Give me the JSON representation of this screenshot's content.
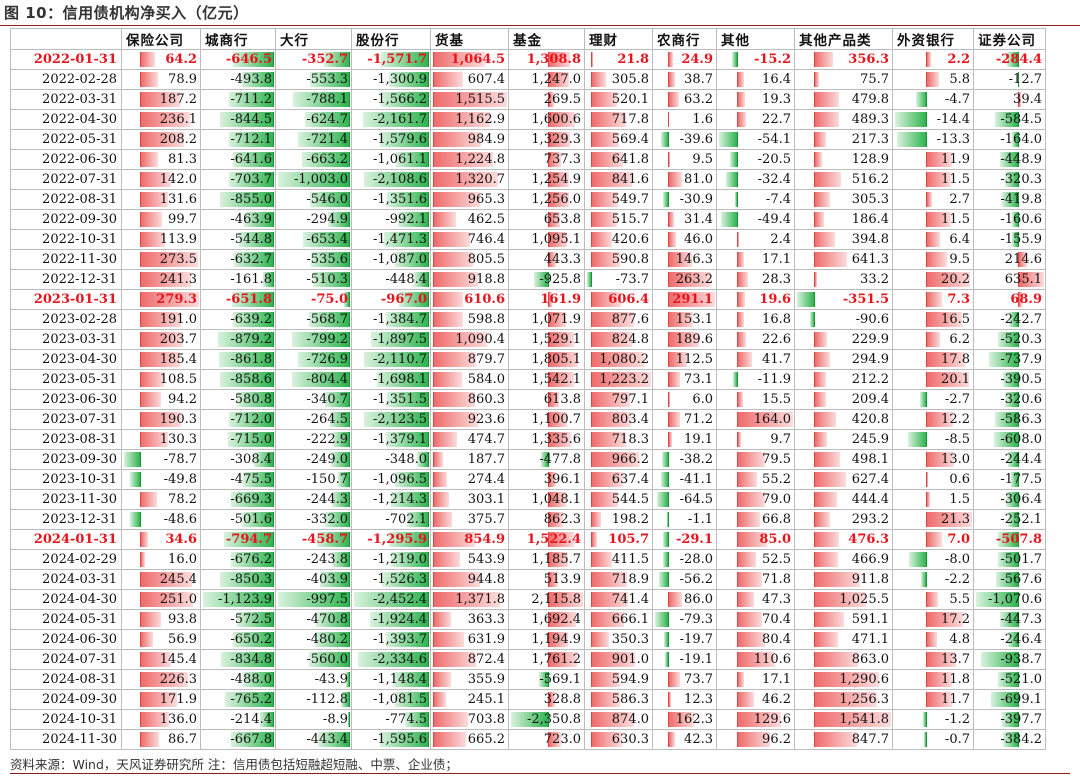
{
  "title": "图 10：信用债机构净买入（亿元）",
  "source_note": "资料来源：Wind，天风证券研究所   注：信用债包括短融超短融、中票、企业债；",
  "colors": {
    "positive_bar": "#ef6b6b",
    "negative_bar": "#2eb44e",
    "highlight_text": "#e8141b",
    "title_rule": "#8a1f1f"
  },
  "highlight_dates": [
    "2022-01-31",
    "2023-01-31",
    "2024-01-31"
  ],
  "table": {
    "date_header": "",
    "headers": [
      "保险公司",
      "城商行",
      "大行",
      "股份行",
      "货基",
      "基金",
      "理财",
      "农商行",
      "其他",
      "其他产品类",
      "外资银行",
      "证券公司"
    ],
    "rows": [
      [
        "2022-01-31",
        "64.2",
        "-646.5",
        "-352.7",
        "-1,571.7",
        "1,064.5",
        "1,308.8",
        "21.8",
        "24.9",
        "-15.2",
        "356.3",
        "2.2",
        "-284.4"
      ],
      [
        "2022-02-28",
        "78.9",
        "-493.8",
        "-553.3",
        "-1,300.9",
        "607.4",
        "1,247.0",
        "305.8",
        "38.7",
        "16.4",
        "75.7",
        "5.8",
        "-12.7"
      ],
      [
        "2022-03-31",
        "187.2",
        "-711.2",
        "-788.1",
        "-1,566.2",
        "1,515.5",
        "269.5",
        "520.1",
        "63.2",
        "19.3",
        "479.8",
        "-4.7",
        "39.4"
      ],
      [
        "2022-04-30",
        "236.1",
        "-844.5",
        "-624.7",
        "-2,161.7",
        "1,162.9",
        "1,600.6",
        "717.8",
        "1.6",
        "22.7",
        "489.3",
        "-14.4",
        "-584.5"
      ],
      [
        "2022-05-31",
        "208.2",
        "-712.1",
        "-721.4",
        "-1,579.6",
        "984.9",
        "1,329.3",
        "569.4",
        "-39.6",
        "-54.1",
        "217.3",
        "-13.3",
        "-164.0"
      ],
      [
        "2022-06-30",
        "81.3",
        "-641.6",
        "-663.2",
        "-1,061.1",
        "1,224.8",
        "737.3",
        "641.8",
        "9.5",
        "-20.5",
        "128.9",
        "11.9",
        "-448.9"
      ],
      [
        "2022-07-31",
        "142.0",
        "-703.7",
        "-1,003.0",
        "-2,108.6",
        "1,320.7",
        "1,254.9",
        "841.6",
        "81.0",
        "-32.4",
        "516.2",
        "11.5",
        "-320.3"
      ],
      [
        "2022-08-31",
        "131.6",
        "-855.0",
        "-546.0",
        "-1,351.6",
        "965.3",
        "1,256.0",
        "549.7",
        "-30.9",
        "-7.4",
        "305.3",
        "2.7",
        "-419.8"
      ],
      [
        "2022-09-30",
        "99.7",
        "-463.9",
        "-294.9",
        "-992.1",
        "462.5",
        "653.8",
        "515.7",
        "31.4",
        "-49.4",
        "186.4",
        "11.5",
        "-160.6"
      ],
      [
        "2022-10-31",
        "113.9",
        "-544.8",
        "-653.4",
        "-1,471.3",
        "746.4",
        "1,095.1",
        "420.6",
        "46.0",
        "2.4",
        "394.8",
        "6.4",
        "-155.9"
      ],
      [
        "2022-11-30",
        "273.5",
        "-632.7",
        "-535.6",
        "-1,087.0",
        "805.5",
        "443.3",
        "590.8",
        "146.3",
        "17.1",
        "641.3",
        "9.5",
        "214.6"
      ],
      [
        "2022-12-31",
        "241.3",
        "-161.8",
        "-510.3",
        "-448.4",
        "918.8",
        "-925.8",
        "-73.7",
        "263.2",
        "28.3",
        "33.2",
        "20.2",
        "635.1"
      ],
      [
        "2023-01-31",
        "279.3",
        "-651.8",
        "-75.0",
        "-967.0",
        "610.6",
        "161.9",
        "606.4",
        "291.1",
        "19.6",
        "-351.5",
        "7.3",
        "68.9"
      ],
      [
        "2023-02-28",
        "191.0",
        "-639.2",
        "-568.7",
        "-1,384.7",
        "598.8",
        "1,071.9",
        "877.6",
        "153.1",
        "16.8",
        "-90.6",
        "16.5",
        "-242.7"
      ],
      [
        "2023-03-31",
        "203.7",
        "-879.2",
        "-799.2",
        "-1,897.5",
        "1,090.4",
        "1,529.1",
        "824.8",
        "189.6",
        "22.6",
        "229.9",
        "6.2",
        "-520.3"
      ],
      [
        "2023-04-30",
        "185.4",
        "-861.8",
        "-726.9",
        "-2,110.7",
        "879.7",
        "1,805.1",
        "1,080.2",
        "112.5",
        "41.7",
        "294.9",
        "17.8",
        "-737.9"
      ],
      [
        "2023-05-31",
        "108.5",
        "-858.6",
        "-804.4",
        "-1,698.1",
        "584.0",
        "1,542.1",
        "1,223.2",
        "73.1",
        "-11.9",
        "212.2",
        "20.1",
        "-390.5"
      ],
      [
        "2023-06-30",
        "94.2",
        "-580.8",
        "-340.7",
        "-1,351.5",
        "860.3",
        "613.8",
        "797.1",
        "6.0",
        "15.5",
        "209.4",
        "-2.7",
        "-320.6"
      ],
      [
        "2023-07-31",
        "190.3",
        "-712.0",
        "-264.5",
        "-2,123.5",
        "923.6",
        "1,100.7",
        "803.4",
        "71.2",
        "164.0",
        "420.8",
        "12.2",
        "-586.3"
      ],
      [
        "2023-08-31",
        "130.3",
        "-715.0",
        "-222.9",
        "-1,379.1",
        "474.7",
        "1,335.6",
        "718.3",
        "19.1",
        "9.7",
        "245.9",
        "-8.5",
        "-608.0"
      ],
      [
        "2023-09-30",
        "-78.7",
        "-308.4",
        "-249.0",
        "-348.0",
        "187.7",
        "-477.8",
        "966.2",
        "-38.2",
        "79.5",
        "498.1",
        "13.0",
        "-244.4"
      ],
      [
        "2023-10-31",
        "-49.8",
        "-475.5",
        "-150.7",
        "-1,096.5",
        "274.4",
        "396.1",
        "637.4",
        "-41.1",
        "55.2",
        "627.4",
        "0.6",
        "-177.5"
      ],
      [
        "2023-11-30",
        "78.2",
        "-669.3",
        "-244.3",
        "-1,214.3",
        "303.1",
        "1,048.1",
        "544.5",
        "-64.5",
        "79.0",
        "444.4",
        "1.5",
        "-306.4"
      ],
      [
        "2023-12-31",
        "-48.6",
        "-501.6",
        "-332.0",
        "-702.1",
        "375.7",
        "862.3",
        "198.2",
        "-1.1",
        "66.8",
        "293.2",
        "21.3",
        "-252.1"
      ],
      [
        "2024-01-31",
        "34.6",
        "-794.7",
        "-458.7",
        "-1,295.9",
        "854.9",
        "1,522.4",
        "105.7",
        "-29.1",
        "85.0",
        "476.3",
        "7.0",
        "-507.8"
      ],
      [
        "2024-02-29",
        "16.0",
        "-676.2",
        "-243.8",
        "-1,219.0",
        "543.9",
        "1,185.7",
        "411.5",
        "-28.0",
        "52.5",
        "466.9",
        "-8.0",
        "-501.7"
      ],
      [
        "2024-03-31",
        "245.4",
        "-850.3",
        "-403.9",
        "-1,526.3",
        "944.8",
        "513.9",
        "718.9",
        "-56.2",
        "71.8",
        "911.8",
        "-2.2",
        "-567.6"
      ],
      [
        "2024-04-30",
        "251.0",
        "-1,123.9",
        "-997.5",
        "-2,452.4",
        "1,371.8",
        "2,115.8",
        "741.4",
        "86.0",
        "47.3",
        "1,025.5",
        "5.5",
        "-1,070.6"
      ],
      [
        "2024-05-31",
        "93.8",
        "-572.5",
        "-470.8",
        "-1,924.4",
        "363.3",
        "1,692.4",
        "666.1",
        "-79.3",
        "70.4",
        "591.1",
        "17.2",
        "-447.3"
      ],
      [
        "2024-06-30",
        "56.9",
        "-650.2",
        "-480.2",
        "-1,393.7",
        "631.9",
        "1,194.9",
        "350.3",
        "-19.7",
        "80.4",
        "471.1",
        "4.8",
        "-246.4"
      ],
      [
        "2024-07-31",
        "145.4",
        "-834.8",
        "-560.0",
        "-2,334.6",
        "872.4",
        "1,761.2",
        "901.0",
        "-19.1",
        "110.6",
        "863.0",
        "13.7",
        "-938.7"
      ],
      [
        "2024-08-31",
        "226.3",
        "-488.0",
        "-43.9",
        "-1,148.4",
        "355.9",
        "-569.1",
        "594.9",
        "73.7",
        "17.1",
        "1,290.6",
        "11.8",
        "-521.0"
      ],
      [
        "2024-09-30",
        "171.9",
        "-765.2",
        "-112.8",
        "-1,081.5",
        "245.1",
        "328.8",
        "586.3",
        "12.3",
        "46.2",
        "1,256.3",
        "11.7",
        "-699.1"
      ],
      [
        "2024-10-31",
        "136.0",
        "-214.4",
        "-8.9",
        "-774.5",
        "703.8",
        "-2,350.8",
        "874.0",
        "162.3",
        "129.6",
        "1,541.8",
        "-1.2",
        "-397.7"
      ],
      [
        "2024-11-30",
        "86.7",
        "-667.8",
        "-443.4",
        "-1,595.6",
        "665.2",
        "723.0",
        "630.3",
        "42.3",
        "96.2",
        "847.7",
        "-0.7",
        "-384.2"
      ]
    ]
  }
}
